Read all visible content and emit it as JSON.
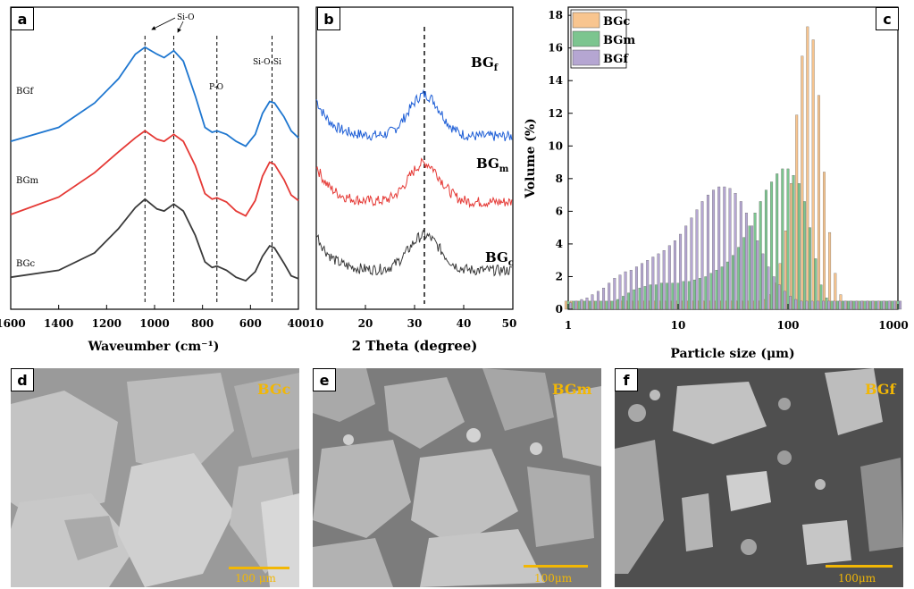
{
  "chart_data": [
    {
      "panel": "a",
      "type": "line",
      "xlabel": "Waveumber (cm⁻¹)",
      "ylabel": "",
      "xlim": [
        1600,
        400
      ],
      "xticks": [
        "1600",
        "1400",
        "1200",
        "1000",
        "800",
        "600",
        "400"
      ],
      "annotations": [
        "Si-O",
        "P-O",
        "Si-O-Si"
      ],
      "reference_lines": [
        1040,
        920,
        740,
        510
      ],
      "series": [
        {
          "name": "BGf",
          "color": "#1f77d0",
          "x": [
            1600,
            1400,
            1250,
            1150,
            1080,
            1040,
            990,
            960,
            920,
            880,
            830,
            790,
            760,
            740,
            700,
            660,
            620,
            580,
            550,
            520,
            500,
            460,
            430,
            400
          ],
          "y": [
            2.05,
            2.25,
            2.6,
            2.95,
            3.3,
            3.4,
            3.3,
            3.25,
            3.35,
            3.2,
            2.7,
            2.25,
            2.18,
            2.2,
            2.15,
            2.05,
            1.98,
            2.15,
            2.45,
            2.62,
            2.6,
            2.4,
            2.2,
            2.1
          ]
        },
        {
          "name": "BGm",
          "color": "#e53935",
          "x": [
            1600,
            1400,
            1250,
            1150,
            1080,
            1040,
            990,
            960,
            920,
            880,
            830,
            790,
            760,
            740,
            700,
            660,
            620,
            580,
            550,
            520,
            500,
            460,
            430,
            400
          ],
          "y": [
            1.0,
            1.25,
            1.6,
            1.9,
            2.1,
            2.2,
            2.08,
            2.05,
            2.15,
            2.05,
            1.7,
            1.3,
            1.22,
            1.24,
            1.18,
            1.05,
            0.98,
            1.2,
            1.55,
            1.75,
            1.72,
            1.5,
            1.28,
            1.2
          ]
        },
        {
          "name": "BGc",
          "color": "#3a3a3a",
          "x": [
            1600,
            1400,
            1250,
            1150,
            1080,
            1040,
            990,
            960,
            920,
            880,
            830,
            790,
            760,
            740,
            700,
            660,
            620,
            580,
            550,
            520,
            500,
            460,
            430,
            400
          ],
          "y": [
            0.1,
            0.2,
            0.45,
            0.8,
            1.1,
            1.22,
            1.08,
            1.05,
            1.15,
            1.05,
            0.7,
            0.32,
            0.24,
            0.26,
            0.2,
            0.1,
            0.05,
            0.18,
            0.4,
            0.55,
            0.52,
            0.3,
            0.12,
            0.08
          ]
        }
      ]
    },
    {
      "panel": "b",
      "type": "line",
      "xlabel": "2 Theta (degree)",
      "ylabel": "",
      "xlim": [
        10,
        50
      ],
      "xticks": [
        "10",
        "20",
        "30",
        "40",
        "50"
      ],
      "reference_lines": [
        32
      ],
      "series": [
        {
          "name": "BGf",
          "label_main": "BG",
          "label_sub": "f",
          "color": "#1f5fd6",
          "baseline": 2.1,
          "amplitude": 0.62
        },
        {
          "name": "BGm",
          "label_main": "BG",
          "label_sub": "m",
          "color": "#e53935",
          "baseline": 1.12,
          "amplitude": 0.58
        },
        {
          "name": "BGc",
          "label_main": "BG",
          "label_sub": "c",
          "color": "#3a3a3a",
          "baseline": 0.1,
          "amplitude": 0.52
        }
      ]
    },
    {
      "panel": "c",
      "type": "bar",
      "xlabel": "Particle size (μm)",
      "ylabel": "Volume (%)",
      "xscale": "log",
      "xlim": [
        1,
        1000
      ],
      "ylim": [
        0,
        18.5
      ],
      "xticks": [
        "1",
        "10",
        "100",
        "1000"
      ],
      "yticks": [
        "0",
        "2",
        "4",
        "6",
        "8",
        "10",
        "12",
        "14",
        "16",
        "18"
      ],
      "legend_position": "top-left",
      "categories": [
        1.0,
        1.12,
        1.26,
        1.41,
        1.58,
        1.78,
        2.0,
        2.24,
        2.51,
        2.82,
        3.16,
        3.55,
        3.98,
        4.47,
        5.01,
        5.62,
        6.31,
        7.08,
        7.94,
        8.91,
        10.0,
        11.2,
        12.6,
        14.1,
        15.8,
        17.8,
        20.0,
        22.4,
        25.1,
        28.2,
        31.6,
        35.5,
        39.8,
        44.7,
        50.1,
        56.2,
        63.1,
        70.8,
        79.4,
        89.1,
        100,
        112,
        126,
        141,
        158,
        178,
        200,
        224,
        251,
        282,
        316,
        355,
        398,
        447,
        501,
        562,
        631,
        708,
        794,
        891,
        1000
      ],
      "series": [
        {
          "name": "BGc",
          "color": "#f8c58f",
          "values": [
            0.5,
            0.5,
            0.5,
            0.5,
            0.5,
            0.5,
            0.5,
            0.5,
            0.5,
            0.5,
            0.5,
            0.5,
            0.5,
            0.5,
            0.5,
            0.5,
            0.5,
            0.5,
            0.5,
            0.5,
            0.5,
            0.5,
            0.5,
            0.5,
            0.5,
            0.5,
            0.5,
            0.5,
            0.5,
            0.5,
            0.5,
            0.5,
            0.5,
            0.5,
            0.5,
            0.5,
            0.6,
            0.9,
            1.6,
            2.8,
            4.8,
            7.7,
            11.9,
            15.5,
            17.3,
            16.5,
            13.1,
            8.4,
            4.7,
            2.2,
            0.9,
            0.5,
            0.5,
            0.5,
            0.5,
            0.5,
            0.5,
            0.5,
            0.5,
            0.5,
            0.5
          ]
        },
        {
          "name": "BGm",
          "color": "#7cc58f",
          "values": [
            0.5,
            0.5,
            0.5,
            0.5,
            0.5,
            0.5,
            0.5,
            0.5,
            0.5,
            0.6,
            0.8,
            1.0,
            1.2,
            1.3,
            1.4,
            1.5,
            1.5,
            1.6,
            1.6,
            1.6,
            1.6,
            1.7,
            1.7,
            1.8,
            1.9,
            2.0,
            2.2,
            2.4,
            2.6,
            2.9,
            3.3,
            3.8,
            4.4,
            5.1,
            5.9,
            6.6,
            7.3,
            7.8,
            8.3,
            8.6,
            8.6,
            8.2,
            7.7,
            6.6,
            5.0,
            3.1,
            1.5,
            0.7,
            0.5,
            0.5,
            0.5,
            0.5,
            0.5,
            0.5,
            0.5,
            0.5,
            0.5,
            0.5,
            0.5,
            0.5,
            0.5
          ]
        },
        {
          "name": "BGf",
          "color": "#b5a6d2",
          "values": [
            0.4,
            0.5,
            0.6,
            0.7,
            0.9,
            1.1,
            1.3,
            1.6,
            1.9,
            2.1,
            2.3,
            2.4,
            2.6,
            2.8,
            3.0,
            3.2,
            3.4,
            3.6,
            3.9,
            4.2,
            4.6,
            5.1,
            5.6,
            6.1,
            6.6,
            7.0,
            7.3,
            7.5,
            7.5,
            7.4,
            7.1,
            6.6,
            5.9,
            5.1,
            4.2,
            3.4,
            2.6,
            2.0,
            1.5,
            1.1,
            0.8,
            0.6,
            0.5,
            0.5,
            0.5,
            0.5,
            0.5,
            0.5,
            0.5,
            0.5,
            0.5,
            0.5,
            0.5,
            0.5,
            0.5,
            0.5,
            0.5,
            0.5,
            0.5,
            0.5,
            0.5
          ]
        }
      ]
    }
  ],
  "panels": {
    "a": {
      "label": "a",
      "annot_sio": "Si-O",
      "annot_po": "P-O",
      "annot_siosi": "Si-O-Si",
      "label_bgf": "BGf",
      "label_bgm": "BGm",
      "label_bgc": "BGc"
    },
    "b": {
      "label": "b"
    },
    "c": {
      "label": "c"
    },
    "d": {
      "label": "d",
      "sample": "BGc",
      "scale_text": "100 μm"
    },
    "e": {
      "label": "e",
      "sample": "BGm",
      "scale_text": "100μm"
    },
    "f": {
      "label": "f",
      "sample": "BGf",
      "scale_text": "100μm"
    }
  },
  "colors": {
    "sem_label": "#f2b705",
    "sem_background": "#c9c9c9"
  }
}
